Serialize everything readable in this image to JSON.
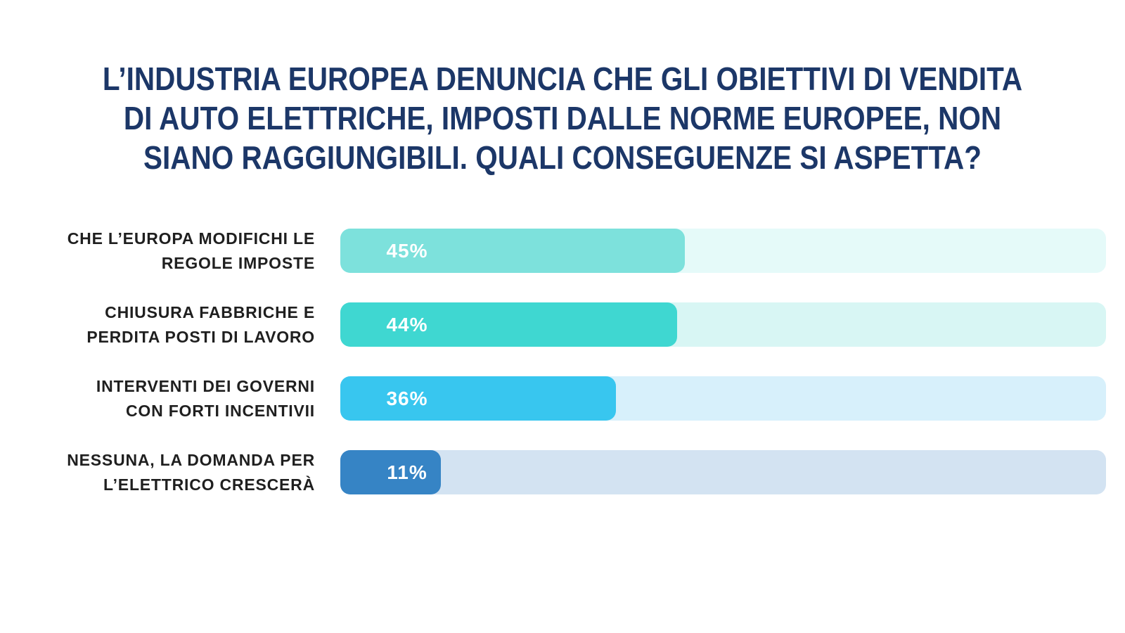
{
  "page": {
    "background": "#ffffff"
  },
  "title": {
    "color": "#1c3768",
    "lines": [
      "L’INDUSTRIA EUROPEA DENUNCIA CHE GLI OBIETTIVI DI VENDITA",
      "DI AUTO ELETTRICHE, IMPOSTI DALLE NORME EUROPEE, NON",
      "SIANO RAGGIUNGIBILI. QUALI CONSEGUENZE SI ASPETTA?"
    ]
  },
  "chart_data": {
    "type": "bar",
    "orientation": "horizontal",
    "title": "L’INDUSTRIA EUROPEA DENUNCIA CHE GLI OBIETTIVI DI VENDITA DI AUTO ELETTRICHE, IMPOSTI DALLE NORME EUROPEE, NON SIANO RAGGIUNGIBILI. QUALI CONSEGUENZE SI ASPETTA?",
    "unit": "%",
    "xlim": [
      0,
      100
    ],
    "grid": false,
    "legend": false,
    "categories": [
      "CHE L’EUROPA MODIFICHI LE REGOLE IMPOSTE",
      "CHIUSURA FABBRICHE E PERDITA POSTI DI LAVORO",
      "INTERVENTI DEI GOVERNI CON FORTI INCENTIVII",
      "NESSUNA, LA DOMANDA PER L’ELETTRICO CRESCERÀ"
    ],
    "values": [
      45,
      44,
      36,
      11
    ],
    "label_color": "#1f1f1f",
    "value_text_color": "#ffffff",
    "rows": [
      {
        "label_lines": [
          "CHE L’EUROPA MODIFICHI LE",
          "REGOLE IMPOSTE"
        ],
        "value": 45,
        "value_label": "45%",
        "bar_color": "#7de1dc",
        "track_color": "#e5faf9"
      },
      {
        "label_lines": [
          "CHIUSURA FABBRICHE E",
          "PERDITA POSTI DI LAVORO"
        ],
        "value": 44,
        "value_label": "44%",
        "bar_color": "#3fd7d1",
        "track_color": "#d8f6f4"
      },
      {
        "label_lines": [
          "INTERVENTI DEI GOVERNI",
          "CON FORTI INCENTIVII"
        ],
        "value": 36,
        "value_label": "36%",
        "bar_color": "#38c6ef",
        "track_color": "#d7f0fb"
      },
      {
        "label_lines": [
          "NESSUNA, LA DOMANDA PER",
          "L’ELETTRICO CRESCERÀ"
        ],
        "value": 11,
        "value_label": "11%",
        "bar_color": "#3684c5",
        "track_color": "#d3e3f2"
      }
    ]
  }
}
